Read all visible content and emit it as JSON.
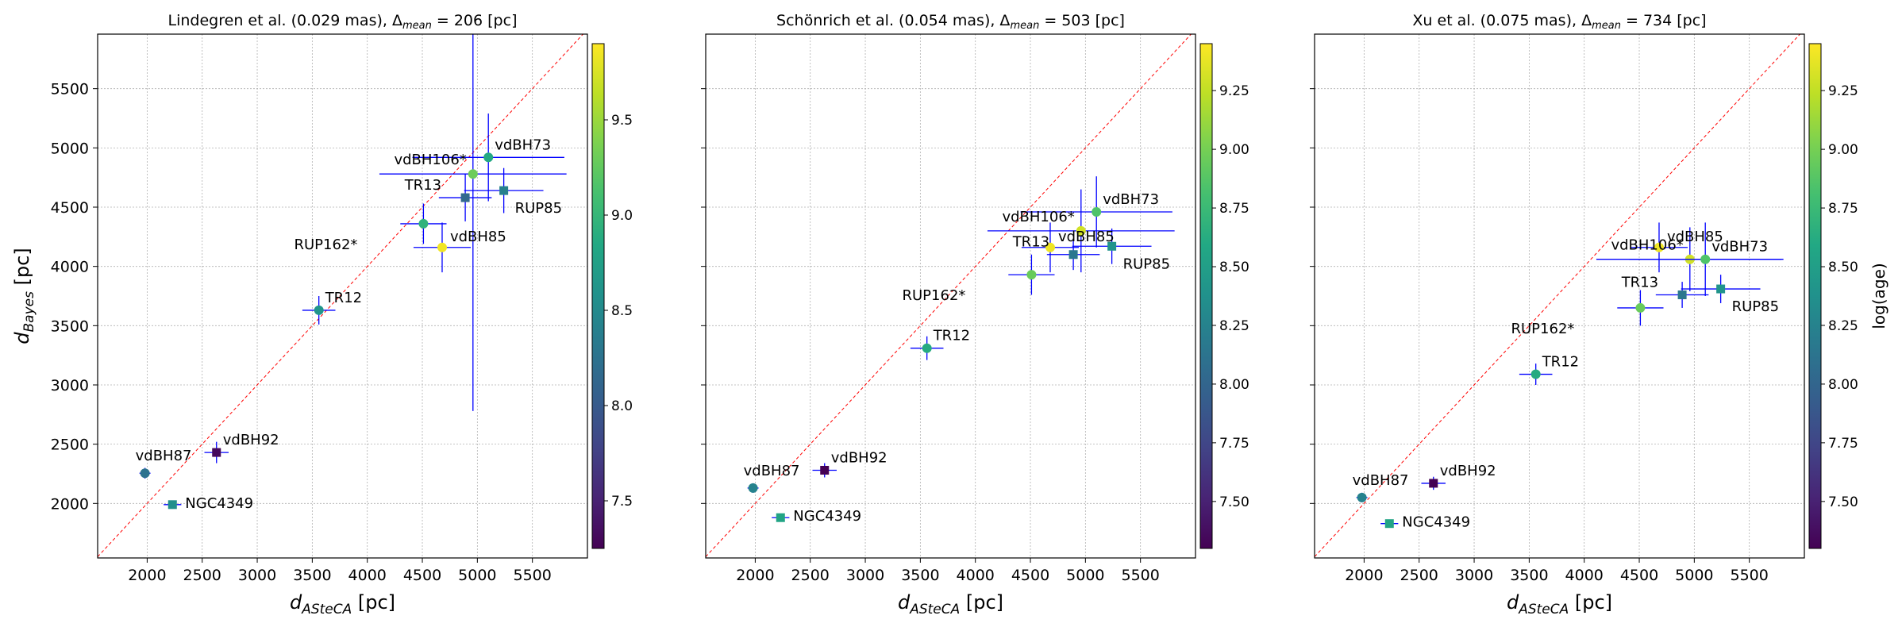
{
  "chart_data": [
    {
      "type": "scatter",
      "title": "Lindegren et al. (0.029 mas), Δ",
      "title_sub": "mean",
      "title_tail": " = 206 [pc]",
      "xlabel_main": "d",
      "xlabel_sub": "ASteCA",
      "xlabel_unit": " [pc]",
      "ylabel_main": "d",
      "ylabel_sub": "Bayes",
      "ylabel_unit": " [pc]",
      "xlim": [
        1550,
        6000
      ],
      "ylim": [
        1540,
        5960
      ],
      "xticks": [
        2000,
        2500,
        3000,
        3500,
        4000,
        4500,
        5000,
        5500
      ],
      "yticks": [
        2000,
        2500,
        3000,
        3500,
        4000,
        4500,
        5000,
        5500
      ],
      "show_ytick_labels": true,
      "clim": [
        7.25,
        9.9
      ],
      "cticks": [
        7.5,
        8.0,
        8.5,
        9.0,
        9.5
      ],
      "cticks_labels": [
        "7.5",
        "8.0",
        "8.5",
        "9.0",
        "9.5"
      ],
      "colorbar_label": "",
      "points": [
        {
          "name": "vdBH87",
          "x": 1980,
          "y": 2255,
          "xerr": 50,
          "yerr": 45,
          "c": 8.25,
          "marker": "o"
        },
        {
          "name": "vdBH92",
          "x": 2630,
          "y": 2430,
          "xerr": 110,
          "yerr": 90,
          "c": 7.3,
          "marker": "s"
        },
        {
          "name": "NGC4349",
          "x": 2230,
          "y": 1990,
          "xerr": 80,
          "yerr": 35,
          "c": 8.55,
          "marker": "s"
        },
        {
          "name": "TR12",
          "x": 3560,
          "y": 3630,
          "xerr": 150,
          "yerr": 120,
          "c": 8.62,
          "marker": "o"
        },
        {
          "name": "RUP162*",
          "x": 4510,
          "y": 4360,
          "xerr": 210,
          "yerr": 170,
          "c": 8.95,
          "marker": "o"
        },
        {
          "name": "vdBH85",
          "x": 4680,
          "y": 4160,
          "xerr": 260,
          "yerr": 210,
          "c": 9.85,
          "marker": "o"
        },
        {
          "name": "TR13",
          "x": 4890,
          "y": 4580,
          "xerr": 240,
          "yerr": 200,
          "c": 8.15,
          "marker": "s"
        },
        {
          "name": "vdBH106*",
          "x": 4960,
          "y": 4780,
          "xerr": 850,
          "yerr": 2000,
          "c": 9.3,
          "marker": "o"
        },
        {
          "name": "vdBH73",
          "x": 5100,
          "y": 4920,
          "xerr": 690,
          "yerr": 370,
          "c": 8.85,
          "marker": "o"
        },
        {
          "name": "RUP85",
          "x": 5240,
          "y": 4640,
          "xerr": 360,
          "yerr": 190,
          "c": 8.4,
          "marker": "s"
        }
      ]
    },
    {
      "type": "scatter",
      "title": "Schönrich et al. (0.054 mas), Δ",
      "title_sub": "mean",
      "title_tail": " = 503 [pc]",
      "xlabel_main": "d",
      "xlabel_sub": "ASteCA",
      "xlabel_unit": " [pc]",
      "ylabel_main": "",
      "ylabel_sub": "",
      "ylabel_unit": "",
      "xlim": [
        1550,
        6000
      ],
      "ylim": [
        1540,
        5960
      ],
      "xticks": [
        2000,
        2500,
        3000,
        3500,
        4000,
        4500,
        5000,
        5500
      ],
      "yticks": [
        2000,
        2500,
        3000,
        3500,
        4000,
        4500,
        5000,
        5500
      ],
      "show_ytick_labels": false,
      "clim": [
        7.3,
        9.45
      ],
      "cticks": [
        7.5,
        7.75,
        8.0,
        8.25,
        8.5,
        8.75,
        9.0,
        9.25
      ],
      "cticks_labels": [
        "7.50",
        "7.75",
        "8.00",
        "8.25",
        "8.50",
        "8.75",
        "9.00",
        "9.25"
      ],
      "colorbar_label": "",
      "points": [
        {
          "name": "vdBH87",
          "x": 1980,
          "y": 2130,
          "xerr": 50,
          "yerr": 40,
          "c": 8.25,
          "marker": "o"
        },
        {
          "name": "vdBH92",
          "x": 2630,
          "y": 2280,
          "xerr": 110,
          "yerr": 60,
          "c": 7.3,
          "marker": "s"
        },
        {
          "name": "NGC4349",
          "x": 2230,
          "y": 1880,
          "xerr": 80,
          "yerr": 25,
          "c": 8.55,
          "marker": "s"
        },
        {
          "name": "TR12",
          "x": 3560,
          "y": 3310,
          "xerr": 150,
          "yerr": 100,
          "c": 8.62,
          "marker": "o"
        },
        {
          "name": "RUP162*",
          "x": 4510,
          "y": 3930,
          "xerr": 210,
          "yerr": 170,
          "c": 8.95,
          "marker": "o"
        },
        {
          "name": "vdBH85",
          "x": 4680,
          "y": 4160,
          "xerr": 260,
          "yerr": 210,
          "c": 9.4,
          "marker": "o"
        },
        {
          "name": "TR13",
          "x": 4890,
          "y": 4100,
          "xerr": 240,
          "yerr": 130,
          "c": 8.15,
          "marker": "s"
        },
        {
          "name": "vdBH106*",
          "x": 4960,
          "y": 4300,
          "xerr": 850,
          "yerr": 350,
          "c": 9.3,
          "marker": "o"
        },
        {
          "name": "vdBH73",
          "x": 5100,
          "y": 4460,
          "xerr": 690,
          "yerr": 300,
          "c": 8.85,
          "marker": "o"
        },
        {
          "name": "RUP85",
          "x": 5240,
          "y": 4170,
          "xerr": 360,
          "yerr": 150,
          "c": 8.4,
          "marker": "s"
        }
      ]
    },
    {
      "type": "scatter",
      "title": "Xu et al. (0.075 mas), Δ",
      "title_sub": "mean",
      "title_tail": " = 734 [pc]",
      "xlabel_main": "d",
      "xlabel_sub": "ASteCA",
      "xlabel_unit": " [pc]",
      "ylabel_main": "",
      "ylabel_sub": "",
      "ylabel_unit": "",
      "xlim": [
        1550,
        6000
      ],
      "ylim": [
        1540,
        5960
      ],
      "xticks": [
        2000,
        2500,
        3000,
        3500,
        4000,
        4500,
        5000,
        5500
      ],
      "yticks": [
        2000,
        2500,
        3000,
        3500,
        4000,
        4500,
        5000,
        5500
      ],
      "show_ytick_labels": false,
      "clim": [
        7.3,
        9.45
      ],
      "cticks": [
        7.5,
        7.75,
        8.0,
        8.25,
        8.5,
        8.75,
        9.0,
        9.25
      ],
      "cticks_labels": [
        "7.50",
        "7.75",
        "8.00",
        "8.25",
        "8.50",
        "8.75",
        "9.00",
        "9.25"
      ],
      "colorbar_label": "log(age)",
      "points": [
        {
          "name": "vdBH87",
          "x": 1980,
          "y": 2050,
          "xerr": 50,
          "yerr": 40,
          "c": 8.25,
          "marker": "o"
        },
        {
          "name": "vdBH92",
          "x": 2630,
          "y": 2170,
          "xerr": 110,
          "yerr": 55,
          "c": 7.3,
          "marker": "s"
        },
        {
          "name": "NGC4349",
          "x": 2230,
          "y": 1830,
          "xerr": 80,
          "yerr": 25,
          "c": 8.55,
          "marker": "s"
        },
        {
          "name": "TR12",
          "x": 3560,
          "y": 3090,
          "xerr": 150,
          "yerr": 90,
          "c": 8.62,
          "marker": "o"
        },
        {
          "name": "RUP162*",
          "x": 4510,
          "y": 3650,
          "xerr": 210,
          "yerr": 150,
          "c": 8.95,
          "marker": "o"
        },
        {
          "name": "vdBH85",
          "x": 4680,
          "y": 4160,
          "xerr": 260,
          "yerr": 210,
          "c": 9.4,
          "marker": "o"
        },
        {
          "name": "TR13",
          "x": 4890,
          "y": 3760,
          "xerr": 240,
          "yerr": 110,
          "c": 8.15,
          "marker": "s"
        },
        {
          "name": "vdBH106*",
          "x": 4960,
          "y": 4060,
          "xerr": 850,
          "yerr": 270,
          "c": 9.3,
          "marker": "o"
        },
        {
          "name": "vdBH73",
          "x": 5100,
          "y": 4060,
          "xerr": 690,
          "yerr": 310,
          "c": 8.85,
          "marker": "o"
        },
        {
          "name": "RUP85",
          "x": 5240,
          "y": 3810,
          "xerr": 360,
          "yerr": 120,
          "c": 8.4,
          "marker": "s"
        }
      ]
    }
  ],
  "colors": {
    "errorbar": "#0000ff",
    "identity_line": "#ff0000",
    "grid": "#b0b0b0",
    "colormap": "viridis"
  }
}
